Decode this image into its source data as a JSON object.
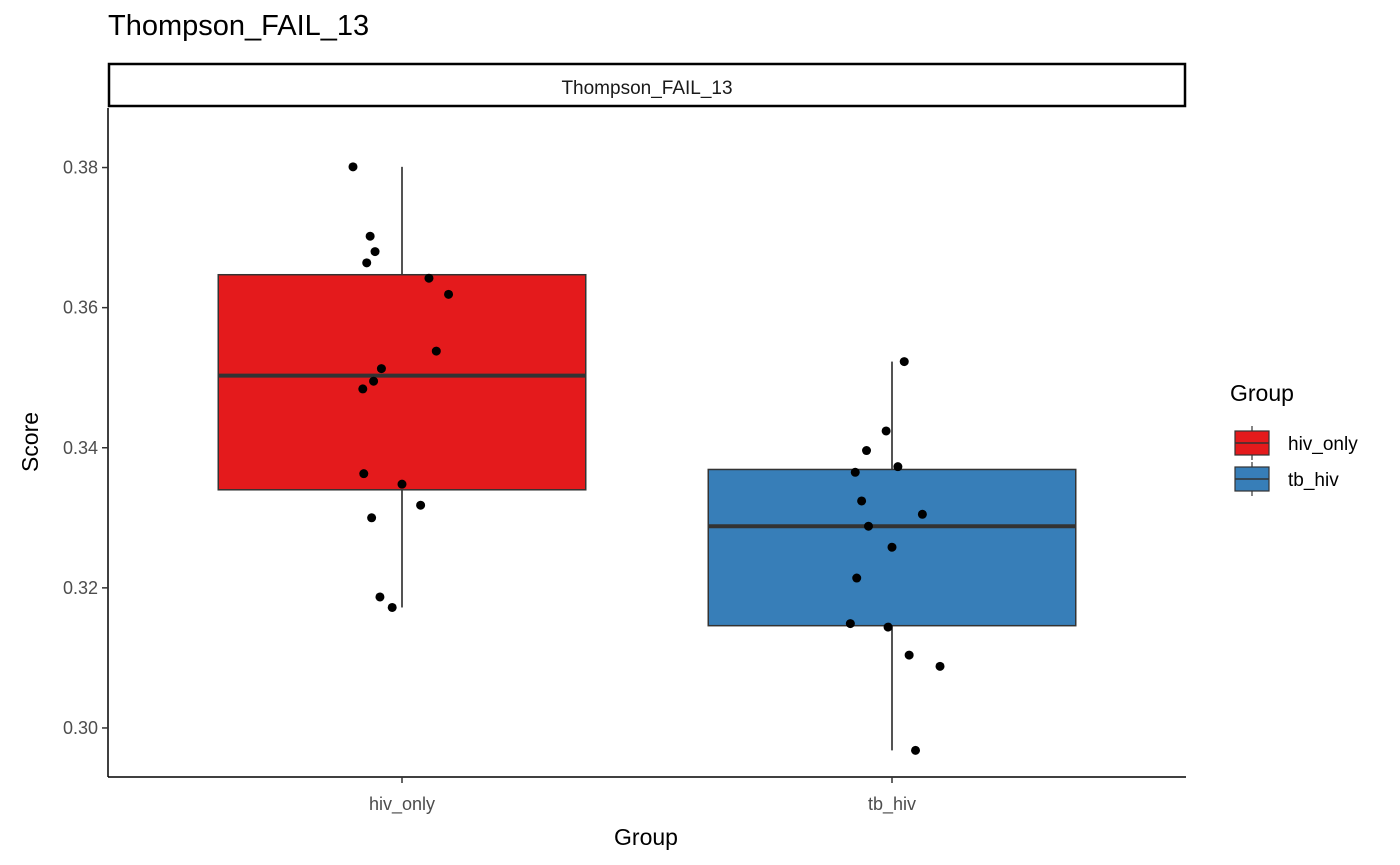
{
  "chart_data": {
    "type": "box",
    "title": "Thompson_FAIL_13",
    "facet_label": "Thompson_FAIL_13",
    "xlabel": "Group",
    "ylabel": "Score",
    "ylim": [
      0.293,
      0.3885
    ],
    "yticks": [
      0.3,
      0.32,
      0.34,
      0.36,
      0.38
    ],
    "ytick_labels": [
      "0.30",
      "0.32",
      "0.34",
      "0.36",
      "0.38"
    ],
    "categories": [
      "hiv_only",
      "tb_hiv"
    ],
    "legend": {
      "title": "Group",
      "position": "right",
      "entries": [
        "hiv_only",
        "tb_hiv"
      ]
    },
    "grid": false,
    "series": [
      {
        "name": "hiv_only",
        "color": "#E41A1C",
        "box": {
          "lower_whisker": 0.3172,
          "q1": 0.334,
          "median": 0.3503,
          "q3": 0.3647,
          "upper_whisker": 0.3801
        },
        "points": [
          {
            "jitter": -0.1,
            "y": 0.3801
          },
          {
            "jitter": -0.065,
            "y": 0.3702
          },
          {
            "jitter": -0.055,
            "y": 0.368
          },
          {
            "jitter": -0.072,
            "y": 0.3664
          },
          {
            "jitter": 0.055,
            "y": 0.3642
          },
          {
            "jitter": 0.095,
            "y": 0.3619
          },
          {
            "jitter": 0.07,
            "y": 0.3538
          },
          {
            "jitter": -0.042,
            "y": 0.3513
          },
          {
            "jitter": -0.058,
            "y": 0.3495
          },
          {
            "jitter": -0.08,
            "y": 0.3484
          },
          {
            "jitter": -0.078,
            "y": 0.3363
          },
          {
            "jitter": 0.0,
            "y": 0.3348
          },
          {
            "jitter": 0.038,
            "y": 0.3318
          },
          {
            "jitter": -0.062,
            "y": 0.33
          },
          {
            "jitter": -0.045,
            "y": 0.3187
          },
          {
            "jitter": -0.02,
            "y": 0.3172
          }
        ]
      },
      {
        "name": "tb_hiv",
        "color": "#377EB8",
        "box": {
          "lower_whisker": 0.2968,
          "q1": 0.3146,
          "median": 0.3288,
          "q3": 0.3369,
          "upper_whisker": 0.3523
        },
        "points": [
          {
            "jitter": 0.025,
            "y": 0.3523
          },
          {
            "jitter": -0.012,
            "y": 0.3424
          },
          {
            "jitter": -0.052,
            "y": 0.3396
          },
          {
            "jitter": 0.012,
            "y": 0.3373
          },
          {
            "jitter": -0.075,
            "y": 0.3365
          },
          {
            "jitter": -0.062,
            "y": 0.3324
          },
          {
            "jitter": 0.062,
            "y": 0.3305
          },
          {
            "jitter": -0.048,
            "y": 0.3288
          },
          {
            "jitter": 0.0,
            "y": 0.3258
          },
          {
            "jitter": -0.072,
            "y": 0.3214
          },
          {
            "jitter": -0.085,
            "y": 0.3149
          },
          {
            "jitter": -0.008,
            "y": 0.3144
          },
          {
            "jitter": 0.035,
            "y": 0.3104
          },
          {
            "jitter": 0.098,
            "y": 0.3088
          },
          {
            "jitter": 0.048,
            "y": 0.2968
          }
        ]
      }
    ]
  }
}
